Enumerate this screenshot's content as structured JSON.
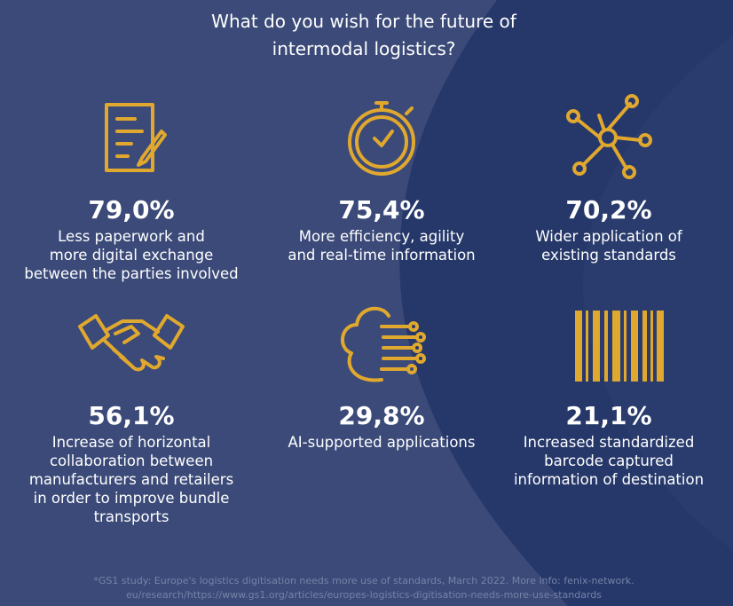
{
  "header": {
    "title_lines": [
      "What do you wish for the future of",
      "intermodal logistics?"
    ]
  },
  "items": [
    {
      "percent": "79,0%",
      "lines": [
        "Less paperwork and",
        "more digital exchange",
        "between the parties involved"
      ]
    },
    {
      "percent": "75,4%",
      "lines": [
        "More efficiency, agility",
        "and real-time information"
      ]
    },
    {
      "percent": "70,2%",
      "lines": [
        "Wider application of",
        "existing standards"
      ]
    },
    {
      "percent": "56,1%",
      "lines": [
        "Increase of horizontal",
        "collaboration between",
        "manufacturers and retailers",
        "in order to improve bundle",
        "transports"
      ]
    },
    {
      "percent": "29,8%",
      "lines": [
        "AI-supported applications"
      ]
    },
    {
      "percent": "21,1%",
      "lines": [
        "Increased standardized",
        "barcode captured",
        "information of destination"
      ]
    }
  ],
  "footnote": {
    "lines": [
      "*GS1 study: Europe's logistics digitisation needs more use of standards, March 2022. More info:  fenix-network.",
      "eu/research/https://www.gs1.org/articles/europes-logistics-digitisation-needs-more-use-standards"
    ]
  }
}
